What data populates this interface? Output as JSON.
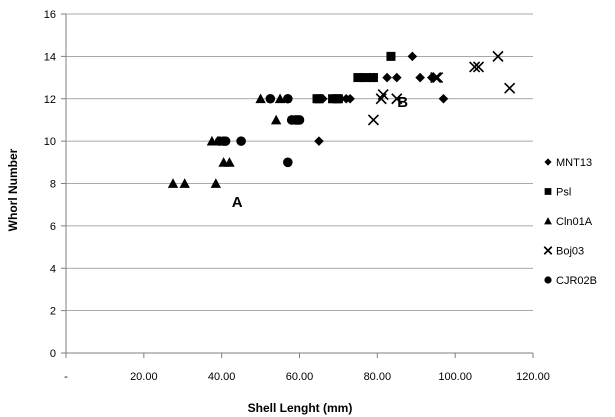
{
  "chart_data": {
    "type": "scatter",
    "xlabel": "Shell Lenght (mm)",
    "ylabel": "Whorl Number",
    "xlim": [
      0,
      120
    ],
    "ylim": [
      0,
      16
    ],
    "x_ticks": [
      0,
      20,
      40,
      60,
      80,
      100,
      120
    ],
    "x_tick_labels": [
      "-",
      "20.00",
      "40.00",
      "60.00",
      "80.00",
      "100.00",
      "120.00"
    ],
    "y_ticks": [
      0,
      2,
      4,
      6,
      8,
      10,
      12,
      14,
      16
    ],
    "y_tick_labels": [
      "0",
      "2",
      "4",
      "6",
      "8",
      "10",
      "12",
      "14",
      "16"
    ],
    "grid": "horizontal",
    "legend_position": "right",
    "series": [
      {
        "name": "MNT13",
        "marker": "diamond",
        "color": "#000000",
        "points": [
          [
            65.0,
            10
          ],
          [
            66.0,
            12
          ],
          [
            70.5,
            12
          ],
          [
            72.0,
            12
          ],
          [
            73.0,
            12
          ],
          [
            76.0,
            13
          ],
          [
            78.0,
            13
          ],
          [
            79.0,
            13
          ],
          [
            82.5,
            13
          ],
          [
            85.0,
            13
          ],
          [
            89.0,
            14
          ],
          [
            91.0,
            13
          ],
          [
            94.0,
            13
          ],
          [
            97.0,
            12
          ]
        ]
      },
      {
        "name": "Psl",
        "marker": "square",
        "color": "#000000",
        "points": [
          [
            64.5,
            12
          ],
          [
            65.0,
            12
          ],
          [
            68.5,
            12
          ],
          [
            69.5,
            12
          ],
          [
            70.0,
            12
          ],
          [
            75.0,
            13
          ],
          [
            77.0,
            13
          ],
          [
            79.0,
            13
          ],
          [
            83.5,
            14
          ]
        ]
      },
      {
        "name": "Cln01A",
        "marker": "triangle",
        "color": "#000000",
        "points": [
          [
            27.5,
            8
          ],
          [
            30.5,
            8
          ],
          [
            38.5,
            8
          ],
          [
            37.5,
            10
          ],
          [
            39.0,
            10
          ],
          [
            40.5,
            9
          ],
          [
            42.0,
            9
          ],
          [
            50.0,
            12
          ],
          [
            54.0,
            11
          ],
          [
            55.0,
            12
          ]
        ]
      },
      {
        "name": "Boj03",
        "marker": "x",
        "color": "#000000",
        "points": [
          [
            79.0,
            11
          ],
          [
            81.0,
            12
          ],
          [
            81.5,
            12.2
          ],
          [
            85.0,
            12
          ],
          [
            95.0,
            13
          ],
          [
            95.5,
            13
          ],
          [
            105.0,
            13.5
          ],
          [
            106.0,
            13.5
          ],
          [
            111.0,
            14
          ],
          [
            114.0,
            12.5
          ]
        ]
      },
      {
        "name": "CJR02B",
        "marker": "circle",
        "color": "#000000",
        "points": [
          [
            39.5,
            10
          ],
          [
            40.5,
            10
          ],
          [
            41.0,
            10
          ],
          [
            45.0,
            10
          ],
          [
            52.5,
            12
          ],
          [
            57.0,
            12
          ],
          [
            57.0,
            9
          ],
          [
            58.0,
            11
          ],
          [
            59.0,
            11
          ],
          [
            59.5,
            11
          ],
          [
            60.0,
            11
          ]
        ]
      }
    ],
    "annotations": [
      {
        "text": "A",
        "x": 44,
        "y": 6.9
      },
      {
        "text": "B",
        "x": 86.5,
        "y": 11.6
      }
    ]
  }
}
